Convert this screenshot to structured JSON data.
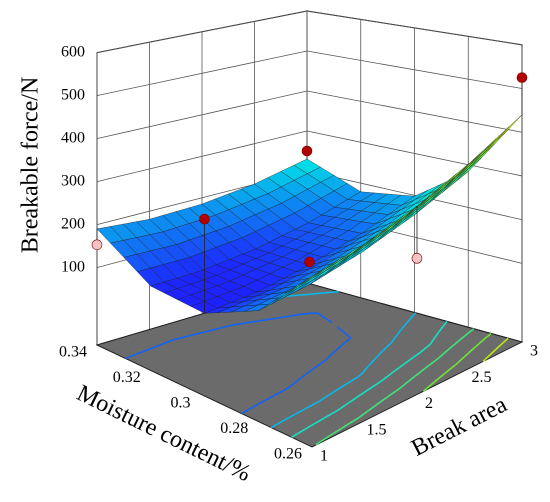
{
  "chart_data": {
    "type": "surface3d",
    "zlabel": "Breakable force/N",
    "xlabel": "Moisture content/%",
    "ylabel": "Break area",
    "x": [
      0.34,
      0.32,
      0.3,
      0.28,
      0.26
    ],
    "y": [
      1,
      1.5,
      2,
      2.5,
      3
    ],
    "z": [
      [
        190,
        181,
        185,
        201,
        230
      ],
      [
        114,
        112,
        122,
        144,
        179
      ],
      [
        108,
        111,
        128,
        156,
        198
      ],
      [
        169,
        179,
        202,
        237,
        284
      ],
      [
        300,
        316,
        345,
        386,
        440
      ]
    ],
    "xlim": [
      0.34,
      0.26
    ],
    "ylim": [
      1,
      3
    ],
    "zlim": [
      -80,
      600
    ],
    "xticks": [
      0.34,
      0.32,
      0.3,
      0.28,
      0.26
    ],
    "yticks": [
      1,
      1.5,
      2,
      2.5,
      3
    ],
    "zticks": [
      100,
      200,
      300,
      400,
      500,
      600
    ],
    "points": [
      {
        "x": 0.26,
        "y": 3,
        "z": 525,
        "color": "#b00000"
      },
      {
        "x": 0.34,
        "y": 3,
        "z": 250,
        "color": "#b00000"
      },
      {
        "x": 0.3,
        "y": 1,
        "z": 322,
        "color": "#b00000"
      },
      {
        "x": 0.3,
        "y": 2,
        "z": 135,
        "color": "#b00000"
      },
      {
        "x": 0.34,
        "y": 1,
        "z": 153,
        "color": "#f4c4c4"
      },
      {
        "x": 0.26,
        "y": 2,
        "z": 227,
        "color": "#f4c4c4"
      }
    ],
    "floor_color": "#6b6b6b",
    "grid": true
  }
}
